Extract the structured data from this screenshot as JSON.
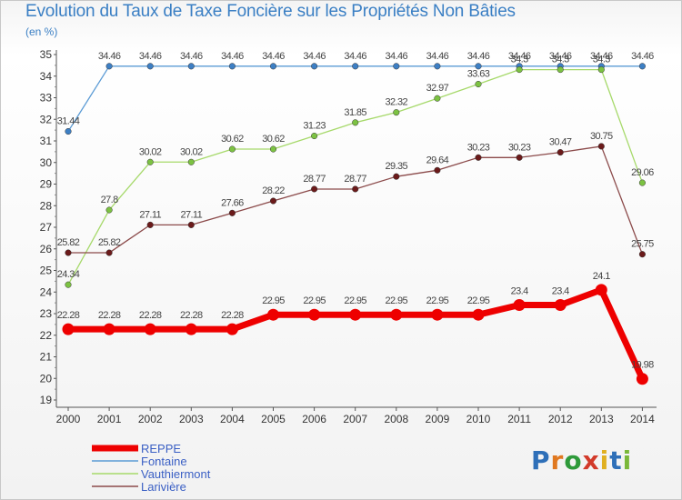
{
  "title": "Evolution du Taux de Taxe Foncière sur les Propriétés Non Bâties",
  "unit_label": "(en %)",
  "logo": {
    "letters": [
      "P",
      "r",
      "o",
      "x",
      "i",
      "t",
      "i"
    ],
    "colors": [
      "#2e6fb8",
      "#e07820",
      "#2e9a3a",
      "#d23a2a",
      "#e0b020",
      "#2e6fb8",
      "#7ab83a"
    ]
  },
  "chart_data": {
    "type": "line",
    "title": "Evolution du Taux de Taxe Foncière sur les Propriétés Non Bâties",
    "ylabel": "(en %)",
    "xlabel": "",
    "x": [
      "2000",
      "2001",
      "2002",
      "2003",
      "2004",
      "2005",
      "2006",
      "2007",
      "2008",
      "2009",
      "2010",
      "2011",
      "2012",
      "2013",
      "2014"
    ],
    "ylim": [
      19,
      35
    ],
    "yticks": [
      19,
      20,
      21,
      22,
      23,
      24,
      25,
      26,
      27,
      28,
      29,
      30,
      31,
      32,
      33,
      34,
      35
    ],
    "grid": false,
    "legend_position": "bottom-left",
    "series": [
      {
        "name": "Fontaine",
        "color": "#5b9bd5",
        "marker_color": "#3d7fc4",
        "values": [
          31.44,
          34.46,
          34.46,
          34.46,
          34.46,
          34.46,
          34.46,
          34.46,
          34.46,
          34.46,
          34.46,
          34.46,
          34.46,
          34.46,
          34.46
        ],
        "labels": [
          "31.44",
          "34.46",
          "34.46",
          "34.46",
          "34.46",
          "34.46",
          "34.46",
          "34.46",
          "34.46",
          "34.46",
          "34.46",
          "34.46",
          "34.46",
          "34.46",
          "34.46"
        ]
      },
      {
        "name": "Vauthiermont",
        "color": "#a6d96a",
        "marker_color": "#7cc242",
        "values": [
          24.34,
          27.8,
          30.02,
          30.02,
          30.62,
          30.62,
          31.23,
          31.85,
          32.32,
          32.97,
          33.63,
          34.3,
          34.3,
          34.3,
          29.06
        ],
        "labels": [
          "24.34",
          "27.8",
          "30.02",
          "30.02",
          "30.62",
          "30.62",
          "31.23",
          "31.85",
          "32.32",
          "32.97",
          "33.63",
          "34.3",
          "34.3",
          "34.3",
          "29.06"
        ]
      },
      {
        "name": "Larivière",
        "color": "#8b4a4a",
        "marker_color": "#6b1a1a",
        "values": [
          25.82,
          25.82,
          27.11,
          27.11,
          27.66,
          28.22,
          28.77,
          28.77,
          29.35,
          29.64,
          30.23,
          30.23,
          30.47,
          30.75,
          25.75
        ],
        "labels": [
          "25.82",
          "25.82",
          "27.11",
          "27.11",
          "27.66",
          "28.22",
          "28.77",
          "28.77",
          "29.35",
          "29.64",
          "30.23",
          "30.23",
          "30.47",
          "30.75",
          "25.75"
        ]
      },
      {
        "name": "REPPE",
        "color": "#ee0000",
        "marker_color": "#ee0000",
        "thick": true,
        "values": [
          22.28,
          22.28,
          22.28,
          22.28,
          22.28,
          22.95,
          22.95,
          22.95,
          22.95,
          22.95,
          22.95,
          23.4,
          23.4,
          24.1,
          19.98
        ],
        "labels": [
          "22.28",
          "22.28",
          "22.28",
          "22.28",
          "22.28",
          "22.95",
          "22.95",
          "22.95",
          "22.95",
          "22.95",
          "22.95",
          "23.4",
          "23.4",
          "24.1",
          "19.98"
        ]
      }
    ],
    "legend": [
      {
        "name": "REPPE",
        "color": "#ee0000",
        "thick": true
      },
      {
        "name": "Fontaine",
        "color": "#5b9bd5",
        "thick": false
      },
      {
        "name": "Vauthiermont",
        "color": "#a6d96a",
        "thick": false
      },
      {
        "name": "Larivière",
        "color": "#8b4a4a",
        "thick": false
      }
    ]
  }
}
